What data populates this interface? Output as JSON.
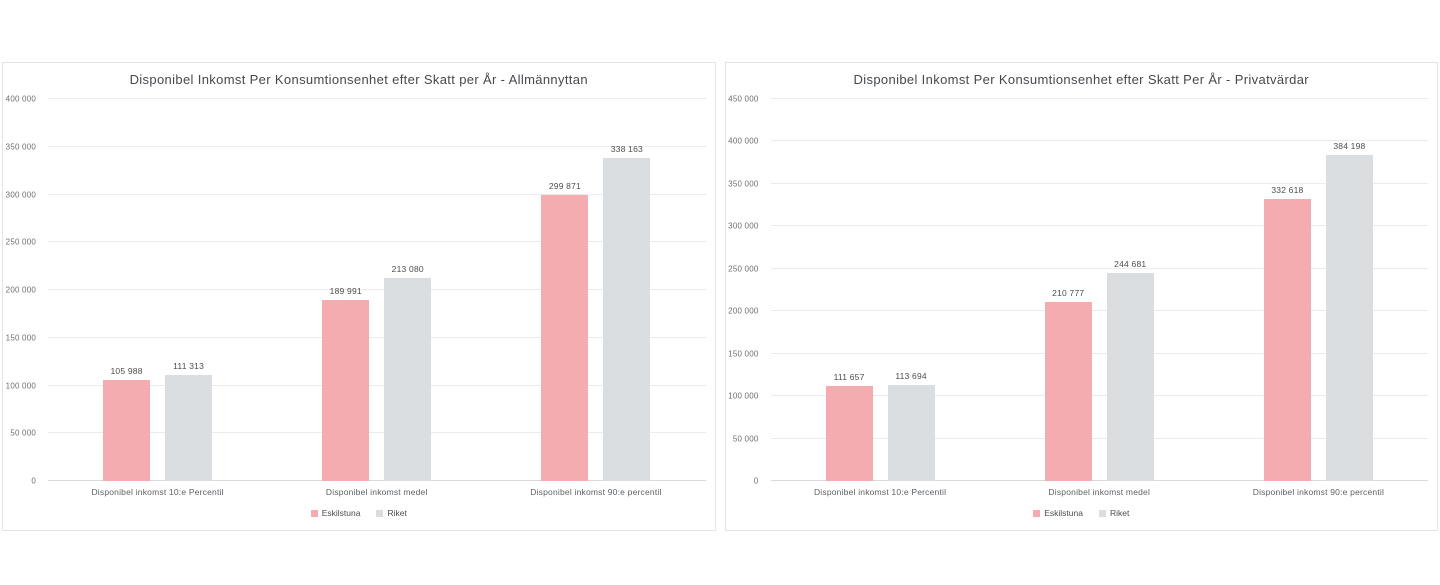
{
  "page": {
    "background": "#ffffff"
  },
  "colors": {
    "series": [
      "#f4acb0",
      "#dbdee0"
    ],
    "gridline": "#ebebeb",
    "zero_line": "#dadada",
    "panel_border": "#e4e4e4",
    "title_text": "#45494d",
    "axis_text": "#6e6e6e",
    "value_text": "#4c4c4c"
  },
  "chart_data": [
    {
      "type": "bar",
      "title": "Disponibel Inkomst Per Konsumtionsenhet efter Skatt per År - Allmännyttan",
      "categories": [
        "Disponibel inkomst 10:e Percentil",
        "Disponibel inkomst medel",
        "Disponibel inkomst 90:e percentil"
      ],
      "series": [
        {
          "name": "Eskilstuna",
          "color": "#f4acb0",
          "values": [
            105988,
            189991,
            299871
          ]
        },
        {
          "name": "Riket",
          "color": "#dbdee0",
          "values": [
            111313,
            213080,
            338163
          ]
        }
      ],
      "ylim": [
        0,
        400000
      ],
      "ytick_step": 50000,
      "grid": true,
      "legend_position": "bottom"
    },
    {
      "type": "bar",
      "title": "Disponibel Inkomst Per Konsumtionsenhet efter Skatt Per År - Privatvärdar",
      "categories": [
        "Disponibel inkomst 10:e Percentil",
        "Disponibel inkomst medel",
        "Disponibel inkomst 90:e percentil"
      ],
      "series": [
        {
          "name": "Eskilstuna",
          "color": "#f4acb0",
          "values": [
            111657,
            210777,
            332618
          ]
        },
        {
          "name": "Riket",
          "color": "#dbdee0",
          "values": [
            113694,
            244681,
            384198
          ]
        }
      ],
      "ylim": [
        0,
        450000
      ],
      "ytick_step": 50000,
      "grid": true,
      "legend_position": "bottom"
    }
  ]
}
